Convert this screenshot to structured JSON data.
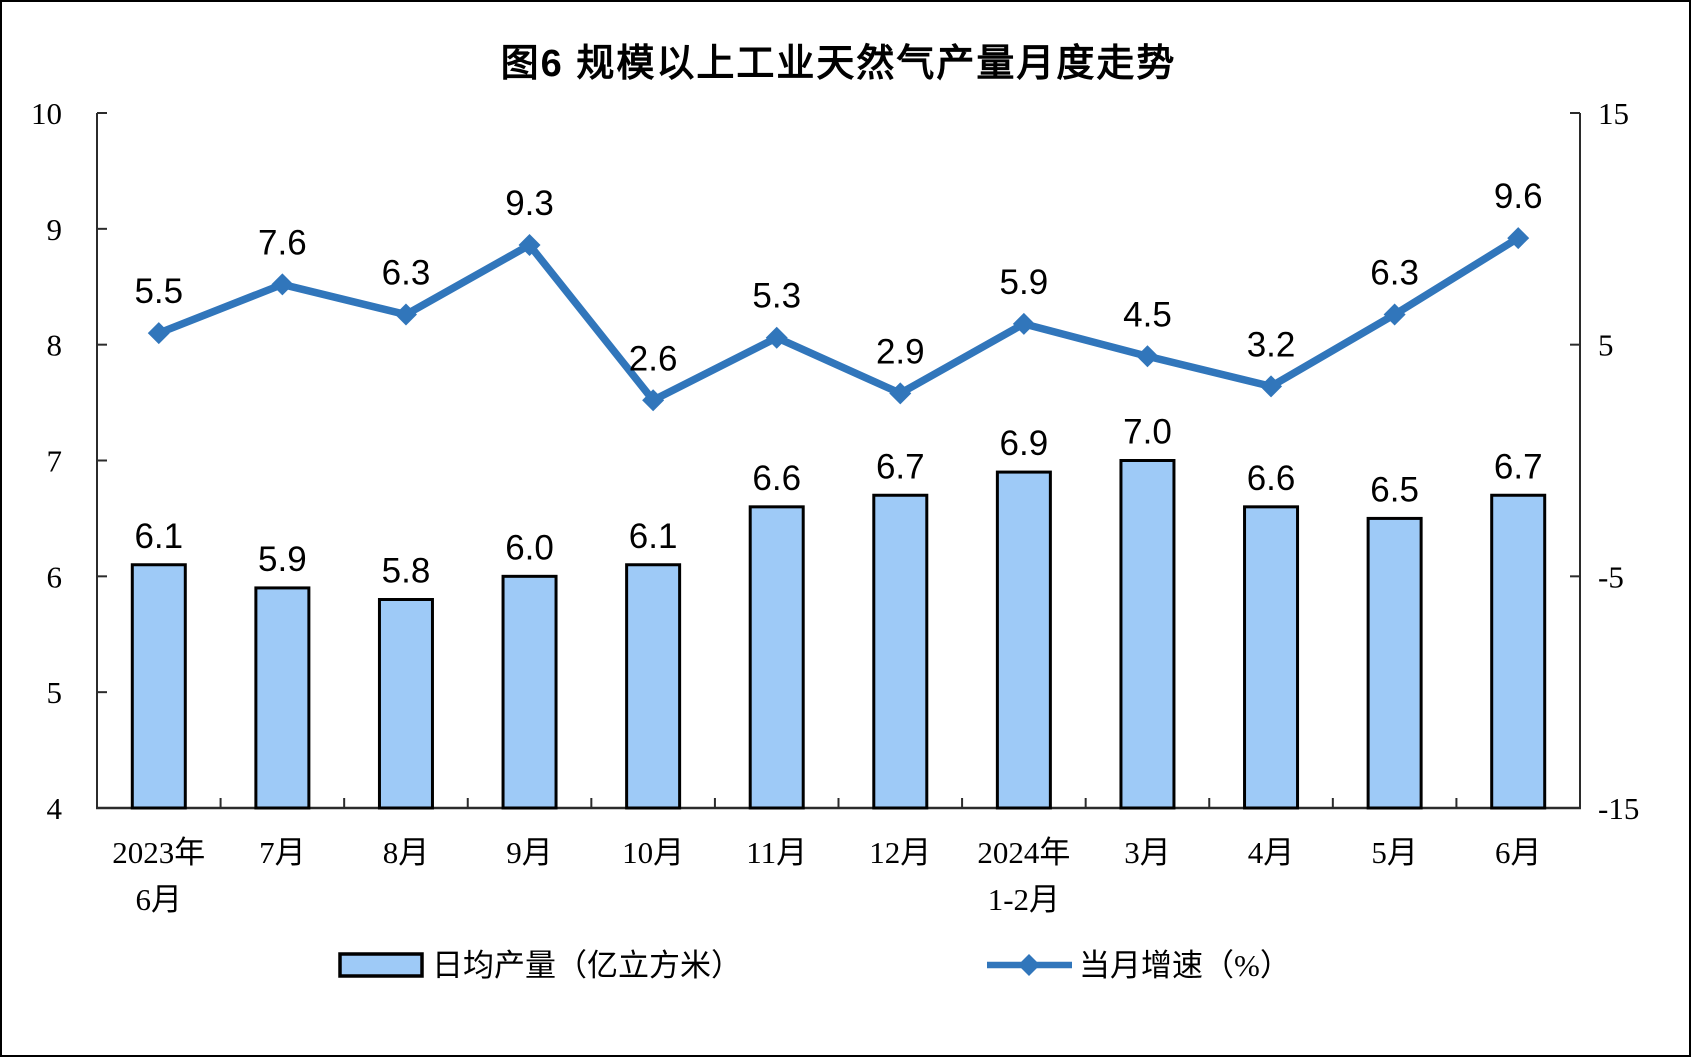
{
  "page": {
    "background": "#ffffff",
    "border_color": "#000000"
  },
  "chart_data": {
    "type": "bar",
    "subtype": "bar-line-combo",
    "title": "图6 规模以上工业天然气产量月度走势",
    "categories": [
      [
        "2023年",
        "6月"
      ],
      [
        "7月"
      ],
      [
        "8月"
      ],
      [
        "9月"
      ],
      [
        "10月"
      ],
      [
        "11月"
      ],
      [
        "12月"
      ],
      [
        "2024年",
        "1-2月"
      ],
      [
        "3月"
      ],
      [
        "4月"
      ],
      [
        "5月"
      ],
      [
        "6月"
      ]
    ],
    "series": [
      {
        "name": "日均产量（亿立方米）",
        "type": "bar",
        "axis": "left",
        "values": [
          6.1,
          5.9,
          5.8,
          6.0,
          6.1,
          6.6,
          6.7,
          6.9,
          7.0,
          6.6,
          6.5,
          6.7
        ]
      },
      {
        "name": "当月增速（%）",
        "type": "line",
        "axis": "right",
        "values": [
          5.5,
          7.6,
          6.3,
          9.3,
          2.6,
          5.3,
          2.9,
          5.9,
          4.5,
          3.2,
          6.3,
          9.6
        ]
      }
    ],
    "left_axis": {
      "min": 4,
      "max": 10,
      "ticks": [
        10,
        9,
        8,
        7,
        6,
        5,
        4
      ]
    },
    "right_axis": {
      "min": -15,
      "max": 15,
      "ticks": [
        15,
        5,
        -5,
        -15
      ]
    },
    "grid": false,
    "legend_position": "bottom",
    "data_labels": true,
    "colors": {
      "bar_fill": "#9ECAF7",
      "bar_border": "#000000",
      "line": "#3176BB",
      "text": "#000000",
      "axis": "#2b2b2b"
    }
  }
}
